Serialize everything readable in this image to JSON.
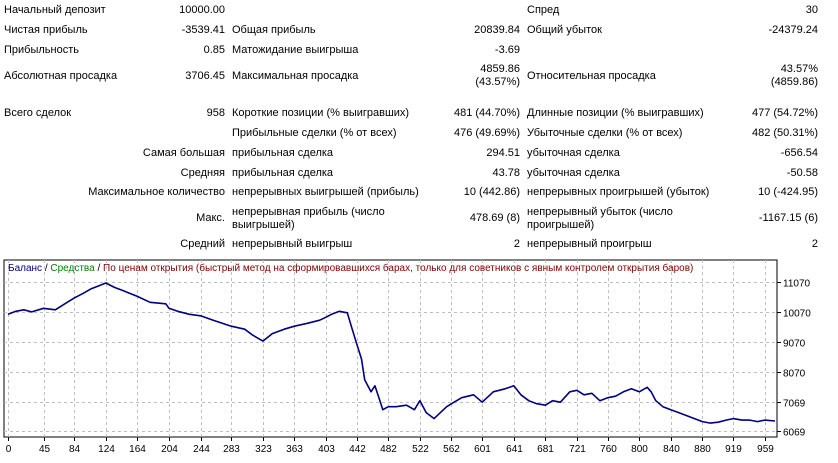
{
  "report": {
    "initial_deposit": {
      "label": "Начальный депозит",
      "value": "10000.00"
    },
    "spread": {
      "label": "Спред",
      "value": "30"
    },
    "net_profit": {
      "label": "Чистая прибыль",
      "value": "-3539.41"
    },
    "gross_profit": {
      "label": "Общая прибыль",
      "value": "20839.84"
    },
    "gross_loss": {
      "label": "Общий убыток",
      "value": "-24379.24"
    },
    "profit_factor": {
      "label": "Прибыльность",
      "value": "0.85"
    },
    "expected_payoff": {
      "label": "Матожидание выигрыша",
      "value": "-3.69"
    },
    "abs_drawdown": {
      "label": "Абсолютная просадка",
      "value": "3706.45"
    },
    "max_drawdown": {
      "label": "Максимальная просадка",
      "value_line1": "4859.86",
      "value_line2": "(43.57%)"
    },
    "rel_drawdown": {
      "label": "Относительная просадка",
      "value_line1": "43.57%",
      "value_line2": "(4859.86)"
    },
    "total_trades": {
      "label": "Всего сделок",
      "value": "958"
    },
    "short_positions": {
      "label": "Короткие позиции (% выигравших)",
      "value": "481 (44.70%)"
    },
    "long_positions": {
      "label": "Длинные позиции (% выигравших)",
      "value": "477 (54.72%)"
    },
    "profit_trades": {
      "label": "Прибыльные сделки (% от всех)",
      "value": "476 (49.69%)"
    },
    "loss_trades": {
      "label": "Убыточные сделки (% от всех)",
      "value": "482 (50.31%)"
    },
    "largest": {
      "label": "Самая большая",
      "profit_label": "прибыльная сделка",
      "profit_value": "294.51",
      "loss_label": "убыточная сделка",
      "loss_value": "-656.54"
    },
    "average": {
      "label": "Средняя",
      "profit_label": "прибыльная сделка",
      "profit_value": "43.78",
      "loss_label": "убыточная сделка",
      "loss_value": "-50.58"
    },
    "max_count": {
      "label": "Максимальное количество",
      "wins_label": "непрерывных выигрышей (прибыль)",
      "wins_value": "10 (442.86)",
      "losses_label": "непрерывных проигрышей (убыток)",
      "losses_value": "10 (-424.95)"
    },
    "max_amount": {
      "label": "Макс.",
      "profit_label": "непрерывная прибыль (число выигрышей)",
      "profit_value": "478.69 (8)",
      "loss_label": "непрерывный убыток (число проигрышей)",
      "loss_value": "-1167.15 (6)"
    },
    "avg_consecutive": {
      "label": "Средний",
      "wins_label": "непрерывный выигрыш",
      "wins_value": "2",
      "losses_label": "непрерывный проигрыш",
      "losses_value": "2"
    }
  },
  "legend": {
    "balance": "Баланс",
    "sep1": " / ",
    "equity": "Средства",
    "sep2": " / ",
    "model": "По ценам открытия (быстрый метод на сформировавшихся барах, только для советников с явным контролем открытия баров)"
  },
  "colors": {
    "balance": "#000080",
    "equity": "#008000",
    "model": "#800000",
    "grid": "#bfbfbf",
    "axis": "#000000"
  },
  "chart_data": {
    "type": "line",
    "series": [
      {
        "name": "Баланс",
        "x": [
          0,
          10,
          20,
          30,
          45,
          60,
          75,
          84,
          95,
          105,
          115,
          124,
          135,
          145,
          164,
          180,
          200,
          204,
          215,
          230,
          244,
          260,
          283,
          300,
          310,
          323,
          335,
          350,
          363,
          380,
          395,
          403,
          410,
          420,
          430,
          435,
          442,
          448,
          452,
          460,
          465,
          470,
          475,
          482,
          492,
          505,
          515,
          522,
          530,
          540,
          548,
          556,
          562,
          575,
          590,
          601,
          615,
          630,
          641,
          650,
          660,
          670,
          681,
          690,
          700,
          712,
          721,
          730,
          740,
          750,
          760,
          770,
          780,
          790,
          800,
          810,
          815,
          821,
          830,
          840,
          850,
          860,
          870,
          880,
          890,
          900,
          910,
          919,
          930,
          940,
          950,
          959,
          972
        ],
        "y": [
          10000,
          10100,
          10150,
          10080,
          10200,
          10150,
          10400,
          10550,
          10700,
          10850,
          10950,
          11050,
          10900,
          10800,
          10600,
          10400,
          10350,
          10200,
          10100,
          10000,
          9950,
          9800,
          9600,
          9500,
          9300,
          9100,
          9350,
          9500,
          9600,
          9700,
          9800,
          9900,
          10000,
          10100,
          10050,
          9600,
          9000,
          8500,
          7800,
          7400,
          7600,
          7200,
          6800,
          6900,
          6900,
          6950,
          6800,
          7100,
          6700,
          6500,
          6700,
          6900,
          7000,
          7200,
          7300,
          7050,
          7400,
          7500,
          7600,
          7300,
          7100,
          7000,
          6950,
          7100,
          7050,
          7400,
          7450,
          7300,
          7350,
          7100,
          7200,
          7250,
          7400,
          7500,
          7400,
          7550,
          7400,
          7100,
          6900,
          6800,
          6700,
          6600,
          6500,
          6400,
          6350,
          6380,
          6450,
          6500,
          6450,
          6450,
          6400,
          6450,
          6420
        ]
      }
    ],
    "y_ticks": [
      "11070",
      "10070",
      "9070",
      "8070",
      "7069",
      "6069"
    ],
    "y_tick_values": [
      11070,
      10070,
      9070,
      8070,
      7069,
      6069
    ],
    "x_ticks": [
      "0",
      "45",
      "84",
      "124",
      "164",
      "204",
      "244",
      "283",
      "323",
      "363",
      "403",
      "442",
      "482",
      "522",
      "562",
      "601",
      "641",
      "681",
      "721",
      "760",
      "800",
      "840",
      "880",
      "919",
      "959"
    ],
    "x_tick_values": [
      0,
      45,
      84,
      124,
      164,
      204,
      244,
      283,
      323,
      363,
      403,
      442,
      482,
      522,
      562,
      601,
      641,
      681,
      721,
      760,
      800,
      840,
      880,
      919,
      959
    ],
    "xlim": [
      0,
      972
    ],
    "ylim": [
      5950,
      11250
    ],
    "grid": true
  }
}
